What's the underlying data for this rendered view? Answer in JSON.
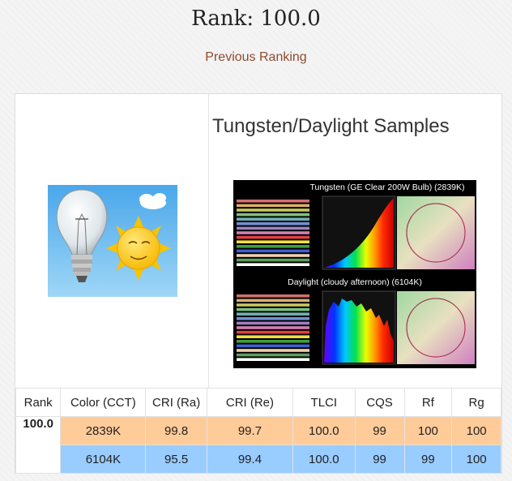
{
  "page": {
    "title": "Rank: 100.0",
    "previous_link": "Previous Ranking"
  },
  "sample": {
    "title": "Tungsten/Daylight Samples",
    "chart_top_title": "Tungsten (GE Clear 200W Bulb) (2839K)",
    "chart_bottom_title": "Daylight (cloudy afternoon) (6104K)"
  },
  "table": {
    "headers": [
      "Rank",
      "Color (CCT)",
      "CRI (Ra)",
      "CRI (Re)",
      "TLCI",
      "CQS",
      "Rf",
      "Rg"
    ],
    "rank": "100.0",
    "rows": [
      {
        "cct": "2839K",
        "cri_ra": "99.8",
        "cri_re": "99.7",
        "tlci": "100.0",
        "cqs": "99",
        "rf": "100",
        "rg": "100",
        "color": "#ffcc99"
      },
      {
        "cct": "6104K",
        "cri_ra": "95.5",
        "cri_re": "99.4",
        "tlci": "100.0",
        "cqs": "99",
        "rf": "99",
        "rg": "100",
        "color": "#99ccff"
      }
    ]
  }
}
